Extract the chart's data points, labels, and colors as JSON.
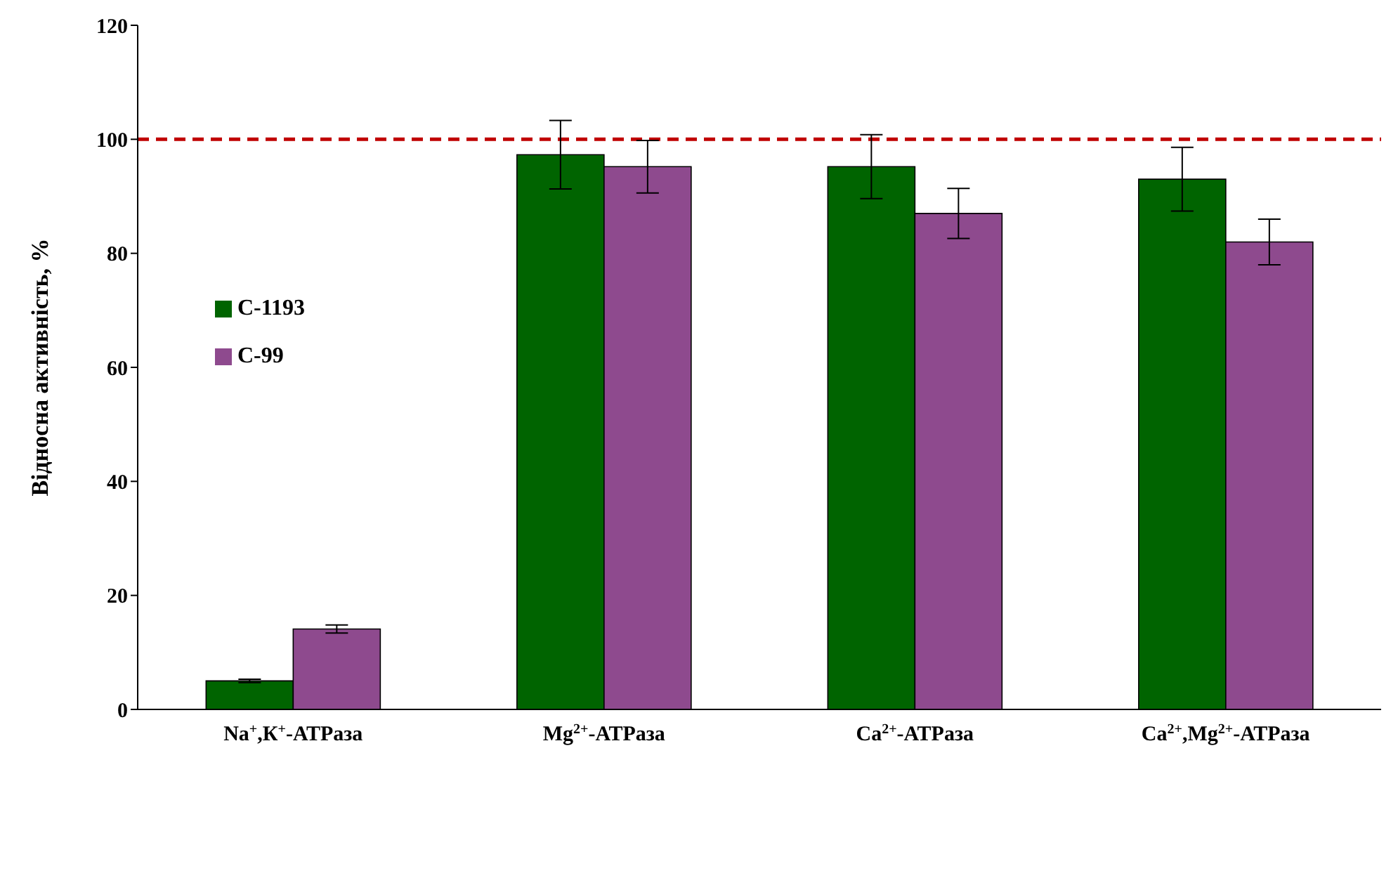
{
  "chart_data": {
    "type": "bar",
    "ylabel": "Відносна активність, %",
    "categories": [
      "Na$^{+}$,К$^{+}$-АТРаза",
      "Mg$^{2+}$-АТРаза",
      "Ca$^{2+}$-АТРаза",
      "Ca$^{2+}$,Mg$^{2+}$-АТРаза"
    ],
    "series": [
      {
        "name": "С-1193",
        "color": "#006400",
        "values": [
          5,
          97.3,
          95.2,
          93
        ],
        "errors": [
          0.3,
          6,
          5.6,
          5.6
        ]
      },
      {
        "name": "С-99",
        "color": "#8e4a8e",
        "values": [
          14.1,
          95.2,
          87,
          82
        ],
        "errors": [
          0.7,
          4.6,
          4.4,
          4
        ]
      }
    ],
    "ylim": [
      0,
      120
    ],
    "yticks": [
      0,
      20,
      40,
      60,
      80,
      100,
      120
    ],
    "grid": false,
    "legend": "left",
    "ref_lines": [
      {
        "axis": "y",
        "value": 100,
        "color": "#c00000",
        "line_style": "dashed"
      }
    ]
  }
}
